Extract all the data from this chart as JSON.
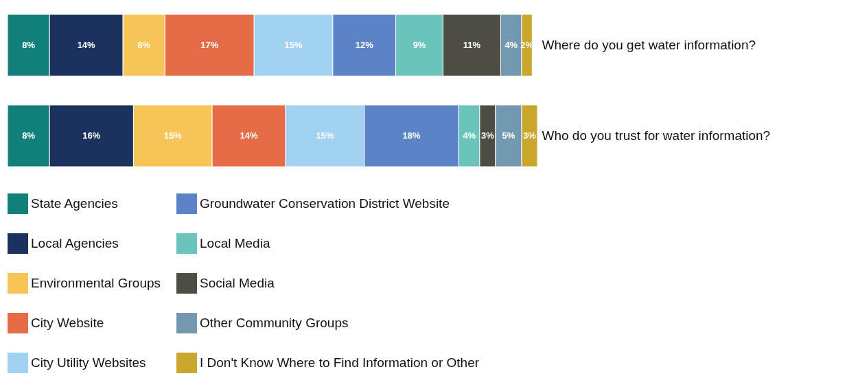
{
  "chart_data": {
    "type": "bar",
    "orientation": "horizontal",
    "stacked": true,
    "tick_labels": "y",
    "legend": "bottom",
    "grid": false,
    "categories": [
      "Where do you get water information?",
      "Who do you trust for water information?"
    ],
    "series": [
      {
        "name": "State Agencies",
        "color": "#11807a",
        "values": [
          8,
          8
        ],
        "value_labels": [
          "8%",
          "8%"
        ]
      },
      {
        "name": "Local Agencies",
        "color": "#1b325e",
        "values": [
          14,
          16
        ],
        "value_labels": [
          "14%",
          "16%"
        ]
      },
      {
        "name": "Environmental Groups",
        "color": "#f6c457",
        "values": [
          8,
          15
        ],
        "value_labels": [
          "8%",
          "15%"
        ]
      },
      {
        "name": "City Website",
        "color": "#e56c47",
        "values": [
          17,
          14
        ],
        "value_labels": [
          "17%",
          "14%"
        ]
      },
      {
        "name": "City Utility Websites",
        "color": "#a2d2f1",
        "values": [
          15,
          15
        ],
        "value_labels": [
          "15%",
          "15%"
        ]
      },
      {
        "name": "Groundwater Conservation District Website",
        "color": "#5b83c5",
        "values": [
          12,
          18
        ],
        "value_labels": [
          "12%",
          "18%"
        ]
      },
      {
        "name": "Local Media",
        "color": "#6bc4bb",
        "values": [
          9,
          4
        ],
        "value_labels": [
          "9%",
          "4%"
        ]
      },
      {
        "name": "Social Media",
        "color": "#4d4d43",
        "values": [
          11,
          3
        ],
        "value_labels": [
          "11%",
          "3%"
        ]
      },
      {
        "name": "Other Community Groups",
        "color": "#7399b1",
        "values": [
          4,
          5
        ],
        "value_labels": [
          "4%",
          "5%"
        ]
      },
      {
        "name": "I Don't Know Where to Find Information or Other",
        "color": "#c9a72c",
        "values": [
          2,
          3
        ],
        "value_labels": [
          "2%",
          "3%"
        ]
      }
    ]
  }
}
